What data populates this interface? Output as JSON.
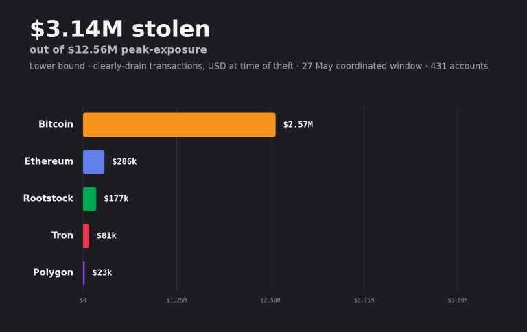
{
  "chart_data": {
    "type": "bar",
    "title": "$3.14M stolen",
    "subtitle": "out of $12.56M peak-exposure",
    "description": "Lower bound · clearly-drain transactions, USD at time of theft · 27 May coordinated window · 431 accounts",
    "categories": [
      "Bitcoin",
      "Ethereum",
      "Rootstock",
      "Tron",
      "Polygon"
    ],
    "values": [
      2570000,
      286000,
      177000,
      81000,
      23000
    ],
    "value_labels": [
      "$2.57M",
      "$286k",
      "$177k",
      "$81k",
      "$23k"
    ],
    "colors": [
      "#f7931a",
      "#627eea",
      "#00a651",
      "#e5384f",
      "#8247e5"
    ],
    "xlim": [
      0,
      5000000
    ],
    "xticks": [
      {
        "value": 0,
        "label": "$0"
      },
      {
        "value": 1250000,
        "label": "$1.25M"
      },
      {
        "value": 2500000,
        "label": "$2.50M"
      },
      {
        "value": 3750000,
        "label": "$3.75M"
      },
      {
        "value": 5000000,
        "label": "$5.00M"
      }
    ],
    "grid": true
  }
}
